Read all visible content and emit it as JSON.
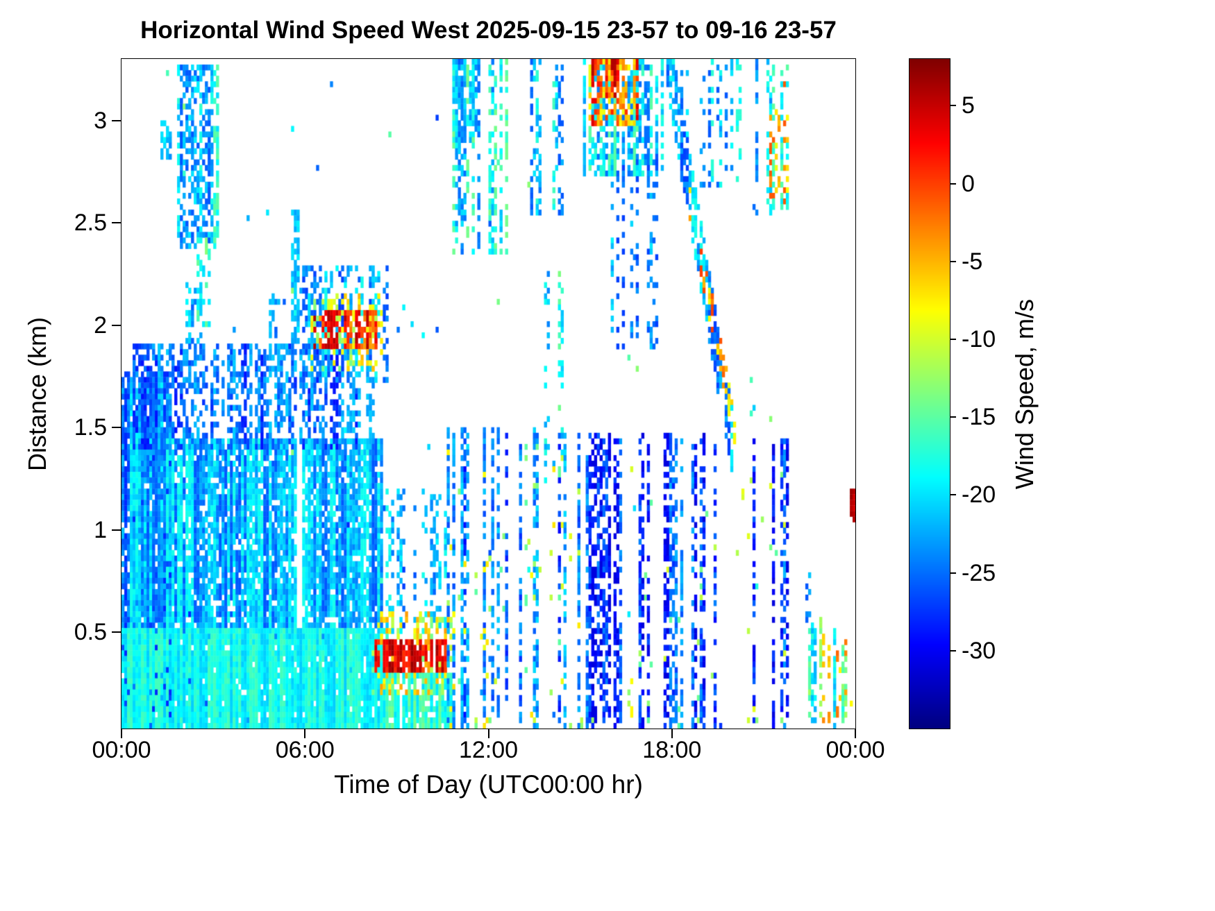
{
  "chart_data": {
    "type": "heatmap",
    "title": "Horizontal Wind Speed West 2025-09-15 23-57 to 09-16 23-57",
    "xlabel": "Time of Day (UTC00:00 hr)",
    "ylabel": "Distance (km)",
    "background": "#ffffff",
    "no_data_color": "#ffffff",
    "x_range_hours": [
      0,
      24
    ],
    "y_range_km": [
      0.03,
      3.3
    ],
    "x_ticks": [
      {
        "value": 0,
        "label": "00:00"
      },
      {
        "value": 6,
        "label": "06:00"
      },
      {
        "value": 12,
        "label": "12:00"
      },
      {
        "value": 18,
        "label": "18:00"
      },
      {
        "value": 24,
        "label": "00:00"
      }
    ],
    "y_ticks": [
      {
        "value": 0.5,
        "label": "0.5"
      },
      {
        "value": 1,
        "label": "1"
      },
      {
        "value": 1.5,
        "label": "1.5"
      },
      {
        "value": 2,
        "label": "2"
      },
      {
        "value": 2.5,
        "label": "2.5"
      },
      {
        "value": 3,
        "label": "3"
      }
    ],
    "colorbar": {
      "label": "Wind Speed, m/s",
      "colormap": "jet",
      "range": [
        -35,
        8
      ],
      "ticks": [
        5,
        0,
        -5,
        -10,
        -15,
        -20,
        -25,
        -30
      ]
    },
    "grid": {
      "nx": 264,
      "ny": 120,
      "seed": 42
    },
    "features": [
      {
        "name": "left-edge-mass",
        "t": [
          0,
          1.6
        ],
        "h": [
          0.03,
          1.75
        ],
        "v": [
          -28,
          -19
        ],
        "density": 0.85,
        "col_prob": 0.97
      },
      {
        "name": "lower-mass-core",
        "t": [
          0.3,
          8.5
        ],
        "h": [
          0.45,
          1.42
        ],
        "v": [
          -26,
          -18
        ],
        "density": 0.85,
        "col_prob": 0.98
      },
      {
        "name": "lower-mass-upper",
        "t": [
          0.4,
          8.2
        ],
        "h": [
          1.4,
          1.9
        ],
        "v": [
          -29,
          -21
        ],
        "density": 0.5,
        "col_prob": 0.9
      },
      {
        "name": "bump-0230",
        "t": [
          2.15,
          2.6
        ],
        "h": [
          1.85,
          2.2
        ],
        "v": [
          -26,
          -19
        ],
        "density": 0.45,
        "col_prob": 0.9
      },
      {
        "name": "bottom-cyan-band",
        "t": [
          0,
          8.7
        ],
        "h": [
          0.03,
          0.5
        ],
        "v": [
          -21,
          -16
        ],
        "density": 0.94,
        "col_prob": 1
      },
      {
        "name": "upper-left-blue-blob",
        "t": [
          1.9,
          3.1
        ],
        "h": [
          2.4,
          3.27
        ],
        "v": [
          -26,
          -15
        ],
        "density": 0.55,
        "col_prob": 0.85
      },
      {
        "name": "upper-left-cyan-tail",
        "t": [
          2.5,
          3.0
        ],
        "h": [
          2.0,
          2.45
        ],
        "v": [
          -21,
          -13
        ],
        "density": 0.4,
        "col_prob": 0.8
      },
      {
        "name": "speck-0125",
        "t": [
          1.35,
          1.55
        ],
        "h": [
          2.82,
          2.98
        ],
        "v": [
          -24,
          -19
        ],
        "density": 0.7,
        "col_prob": 1
      },
      {
        "name": "col-0500",
        "t": [
          4.85,
          5.1
        ],
        "h": [
          1.75,
          2.15
        ],
        "v": [
          -27,
          -21
        ],
        "density": 0.5,
        "col_prob": 1
      },
      {
        "name": "morning-spike-0540",
        "t": [
          5.55,
          5.8
        ],
        "h": [
          1.9,
          2.55
        ],
        "v": [
          -26,
          -19
        ],
        "density": 0.6,
        "col_prob": 1
      },
      {
        "name": "morning-2km-blue",
        "t": [
          5.6,
          8.7
        ],
        "h": [
          1.72,
          2.28
        ],
        "v": [
          -27,
          -18
        ],
        "density": 0.4,
        "col_prob": 0.85
      },
      {
        "name": "morning-2km-yellow",
        "t": [
          6.2,
          8.5
        ],
        "h": [
          1.8,
          2.15
        ],
        "v": [
          -14,
          -5
        ],
        "density": 0.3,
        "col_prob": 0.9
      },
      {
        "name": "morning-2km-red",
        "t": [
          6.35,
          8.35
        ],
        "h": [
          1.9,
          2.06
        ],
        "v": [
          -4,
          6
        ],
        "density": 0.7,
        "col_prob": 0.92
      },
      {
        "name": "early-0900-low-cols",
        "t": [
          8.7,
          10.6
        ],
        "h": [
          0.5,
          1.2
        ],
        "v": [
          -27,
          -18
        ],
        "density": 0.35,
        "col_prob": 0.5
      },
      {
        "name": "bottom-cyan-0830-1045",
        "t": [
          8.6,
          10.8
        ],
        "h": [
          0.03,
          0.3
        ],
        "v": [
          -20,
          -14
        ],
        "density": 0.85,
        "col_prob": 0.95
      },
      {
        "name": "red-streak-fringe",
        "t": [
          8.2,
          11.0
        ],
        "h": [
          0.22,
          0.6
        ],
        "v": [
          -14,
          -4
        ],
        "density": 0.35,
        "col_prob": 0.9
      },
      {
        "name": "red-streak-core",
        "t": [
          8.35,
          10.6
        ],
        "h": [
          0.32,
          0.45
        ],
        "v": [
          0,
          7
        ],
        "density": 0.8,
        "col_prob": 0.95
      },
      {
        "name": "midday-sparse-cols",
        "t": [
          10.7,
          15.2
        ],
        "h": [
          0.03,
          1.5
        ],
        "v": [
          -30,
          -20
        ],
        "density": 0.55,
        "col_prob": 0.3
      },
      {
        "name": "midday-green-specks",
        "t": [
          10.7,
          15.2
        ],
        "h": [
          0.05,
          1.4
        ],
        "v": [
          -15,
          -7
        ],
        "density": 0.05,
        "col_prob": 0.5
      },
      {
        "name": "noon-upper-cols",
        "t": [
          10.9,
          12.6
        ],
        "h": [
          2.35,
          3.3
        ],
        "v": [
          -25,
          -14
        ],
        "density": 0.5,
        "col_prob": 0.6
      },
      {
        "name": "noon-top-dense",
        "t": [
          10.85,
          11.6
        ],
        "h": [
          2.9,
          3.3
        ],
        "v": [
          -26,
          -17
        ],
        "density": 0.7,
        "col_prob": 0.85
      },
      {
        "name": "early-pm-upper-patches",
        "t": [
          13.3,
          14.6
        ],
        "h": [
          2.55,
          3.3
        ],
        "v": [
          -26,
          -16
        ],
        "density": 0.4,
        "col_prob": 0.55
      },
      {
        "name": "1400-mid-cols",
        "t": [
          13.9,
          14.5
        ],
        "h": [
          1.25,
          2.25
        ],
        "v": [
          -24,
          -12
        ],
        "density": 0.3,
        "col_prob": 0.45
      },
      {
        "name": "pm-top-cluster",
        "t": [
          15.1,
          17.7
        ],
        "h": [
          2.75,
          3.3
        ],
        "v": [
          -25,
          -15
        ],
        "density": 0.6,
        "col_prob": 0.85
      },
      {
        "name": "pm-top-warm",
        "t": [
          15.3,
          16.9
        ],
        "h": [
          3.0,
          3.3
        ],
        "v": [
          -9,
          4
        ],
        "density": 0.55,
        "col_prob": 0.9
      },
      {
        "name": "pm-top-red",
        "t": [
          15.4,
          16.3
        ],
        "h": [
          3.12,
          3.3
        ],
        "v": [
          -2,
          6
        ],
        "density": 0.5,
        "col_prob": 0.85
      },
      {
        "name": "pm-upper-cols-down",
        "t": [
          16.0,
          17.5
        ],
        "h": [
          1.9,
          2.85
        ],
        "v": [
          -27,
          -19
        ],
        "density": 0.3,
        "col_prob": 0.5
      },
      {
        "name": "evening-lower-cols",
        "t": [
          15.3,
          21.8
        ],
        "h": [
          0.03,
          1.45
        ],
        "v": [
          -31,
          -22
        ],
        "density": 0.55,
        "col_prob": 0.42
      },
      {
        "name": "evening-lower-specks",
        "t": [
          15.4,
          21.7
        ],
        "h": [
          0.05,
          1.3
        ],
        "v": [
          -15,
          -8
        ],
        "density": 0.035,
        "col_prob": 0.5
      },
      {
        "name": "1830-top-cols",
        "t": [
          18.3,
          20.2
        ],
        "h": [
          2.7,
          3.3
        ],
        "v": [
          -26,
          -17
        ],
        "density": 0.3,
        "col_prob": 0.5
      },
      {
        "type": "diagonal",
        "name": "descending-band",
        "t": [
          17.85,
          20.0
        ],
        "h_start": 3.3,
        "h_end": 1.45,
        "thickness": 0.32,
        "v": [
          -27,
          -18
        ],
        "density": 0.65,
        "col_prob": 0.95
      },
      {
        "type": "diagonal",
        "name": "descending-band-warm",
        "t": [
          18.6,
          20.05
        ],
        "h_start": 2.6,
        "h_end": 1.5,
        "thickness": 0.16,
        "v": [
          -9,
          0
        ],
        "density": 0.3,
        "col_prob": 0.8
      },
      {
        "name": "evening-top-patch",
        "t": [
          20.8,
          21.9
        ],
        "h": [
          2.55,
          3.3
        ],
        "v": [
          -25,
          -15
        ],
        "density": 0.45,
        "col_prob": 0.65
      },
      {
        "name": "evening-top-warm",
        "t": [
          21.2,
          21.8
        ],
        "h": [
          2.6,
          3.2
        ],
        "v": [
          -9,
          -1
        ],
        "density": 0.25,
        "col_prob": 0.75
      },
      {
        "name": "late-right-streaks",
        "t": [
          22.3,
          24
        ],
        "h": [
          0.03,
          0.55
        ],
        "v": [
          -22,
          -12
        ],
        "density": 0.5,
        "col_prob": 0.6
      },
      {
        "name": "late-right-blue",
        "t": [
          22.3,
          22.6
        ],
        "h": [
          0.5,
          0.85
        ],
        "v": [
          -26,
          -18
        ],
        "density": 0.4,
        "col_prob": 0.7
      },
      {
        "name": "late-right-warm",
        "t": [
          22.8,
          23.9
        ],
        "h": [
          0.08,
          0.5
        ],
        "v": [
          -8,
          0
        ],
        "density": 0.15,
        "col_prob": 0.6
      },
      {
        "name": "right-edge-red-dot",
        "t": [
          23.85,
          24
        ],
        "h": [
          1.05,
          1.2
        ],
        "v": [
          4,
          7
        ],
        "density": 0.9,
        "col_prob": 1
      },
      {
        "name": "scattered-specks",
        "t": [
          0,
          24
        ],
        "h": [
          0.03,
          3.3
        ],
        "v": [
          -28,
          -13
        ],
        "density": 0.01,
        "col_prob": 0.25
      }
    ]
  }
}
